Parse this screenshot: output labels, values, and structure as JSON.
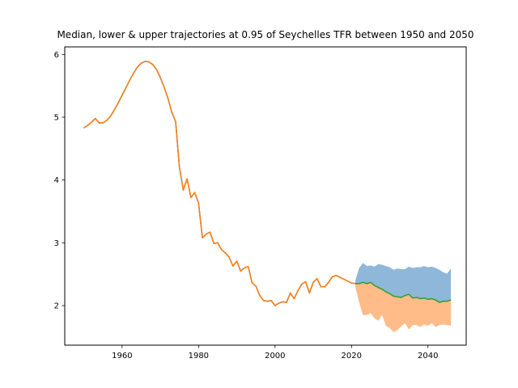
{
  "chart_data": {
    "type": "area",
    "title": "Median, lower & upper trajectories at 0.95 of Seychelles TFR between 1950 and 2050",
    "xlabel": "",
    "ylabel": "",
    "xlim": [
      1945,
      2050
    ],
    "ylim": [
      1.37,
      6.12
    ],
    "x_ticks": [
      1960,
      1980,
      2000,
      2020,
      2040
    ],
    "y_ticks": [
      2,
      3,
      4,
      5,
      6
    ],
    "grid": false,
    "legend": "none",
    "colors": {
      "historical_a": "#1f77b4",
      "historical_b": "#ff7f0e",
      "median": "#2ca02c",
      "upper_band": "#8fb7d9",
      "lower_band": "#ffbb88"
    },
    "historical": {
      "x": [
        1950,
        1951,
        1952,
        1953,
        1954,
        1955,
        1956,
        1957,
        1958,
        1959,
        1960,
        1961,
        1962,
        1963,
        1964,
        1965,
        1966,
        1967,
        1968,
        1969,
        1970,
        1971,
        1972,
        1973,
        1974,
        1975,
        1976,
        1977,
        1978,
        1979,
        1980,
        1981,
        1982,
        1983,
        1984,
        1985,
        1986,
        1987,
        1988,
        1989,
        1990,
        1991,
        1992,
        1993,
        1994,
        1995,
        1996,
        1997,
        1998,
        1999,
        2000,
        2001,
        2002,
        2003,
        2004,
        2005,
        2006,
        2007,
        2008,
        2009,
        2010,
        2011,
        2012,
        2013,
        2014,
        2015,
        2016,
        2017,
        2018,
        2019,
        2020,
        2021
      ],
      "values": [
        4.83,
        4.87,
        4.92,
        4.98,
        4.91,
        4.91,
        4.95,
        5.02,
        5.12,
        5.23,
        5.35,
        5.47,
        5.59,
        5.7,
        5.8,
        5.86,
        5.89,
        5.88,
        5.84,
        5.76,
        5.63,
        5.48,
        5.3,
        5.08,
        4.93,
        4.2,
        3.84,
        4.02,
        3.72,
        3.8,
        3.63,
        3.08,
        3.14,
        3.17,
        2.99,
        3.0,
        2.89,
        2.84,
        2.77,
        2.63,
        2.71,
        2.55,
        2.6,
        2.62,
        2.36,
        2.31,
        2.16,
        2.08,
        2.07,
        2.08,
        2.0,
        2.04,
        2.06,
        2.05,
        2.2,
        2.11,
        2.24,
        2.34,
        2.38,
        2.2,
        2.37,
        2.43,
        2.3,
        2.3,
        2.37,
        2.46,
        2.48,
        2.45,
        2.42,
        2.39,
        2.36,
        2.35
      ]
    },
    "projection": {
      "x": [
        2021,
        2022,
        2023,
        2024,
        2025,
        2026,
        2027,
        2028,
        2029,
        2030,
        2031,
        2032,
        2033,
        2034,
        2035,
        2036,
        2037,
        2038,
        2039,
        2040,
        2041,
        2042,
        2043,
        2044,
        2045,
        2046
      ],
      "median": [
        2.35,
        2.35,
        2.37,
        2.35,
        2.37,
        2.32,
        2.29,
        2.26,
        2.22,
        2.19,
        2.15,
        2.14,
        2.13,
        2.16,
        2.18,
        2.12,
        2.13,
        2.11,
        2.12,
        2.1,
        2.11,
        2.09,
        2.05,
        2.07,
        2.07,
        2.09
      ],
      "upper": [
        2.4,
        2.6,
        2.68,
        2.63,
        2.64,
        2.62,
        2.66,
        2.65,
        2.63,
        2.61,
        2.57,
        2.59,
        2.58,
        2.58,
        2.62,
        2.6,
        2.61,
        2.61,
        2.63,
        2.61,
        2.62,
        2.6,
        2.57,
        2.53,
        2.51,
        2.59
      ],
      "lower": [
        2.3,
        2.05,
        1.85,
        1.85,
        1.88,
        1.8,
        1.76,
        1.85,
        1.68,
        1.64,
        1.58,
        1.61,
        1.67,
        1.72,
        1.62,
        1.69,
        1.69,
        1.66,
        1.7,
        1.68,
        1.72,
        1.66,
        1.69,
        1.7,
        1.69,
        1.68
      ]
    }
  }
}
